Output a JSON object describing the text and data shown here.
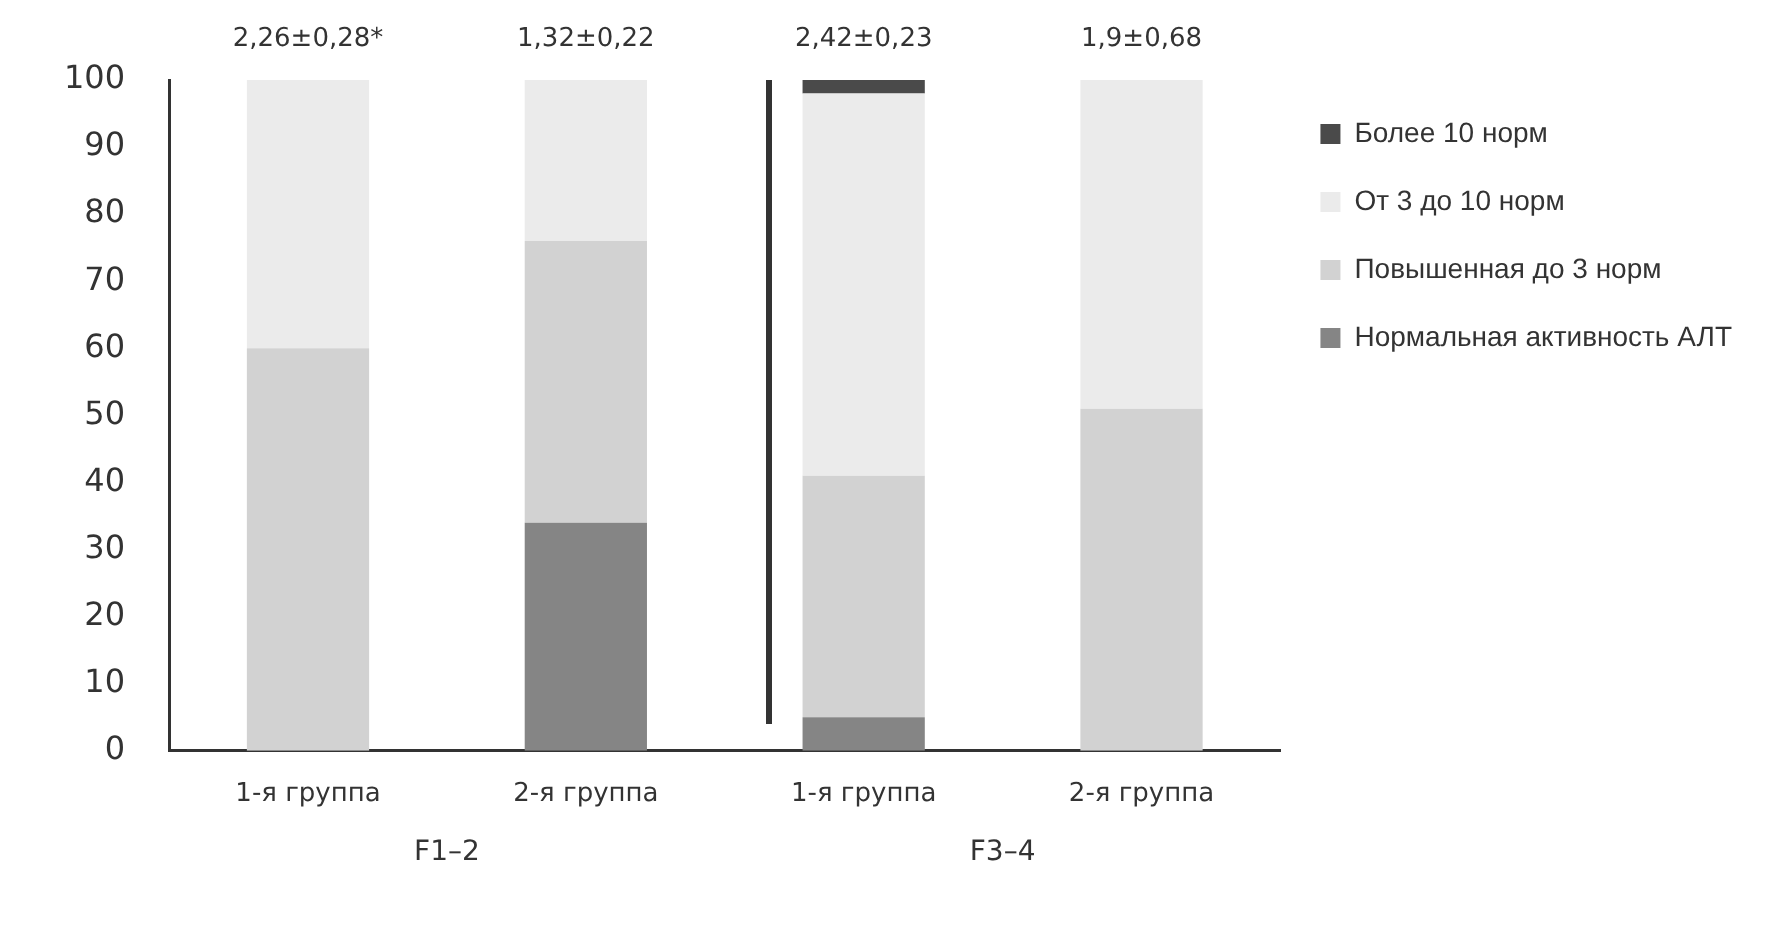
{
  "chart_data": {
    "type": "bar",
    "stacked": true,
    "categories": [
      "1-я группа",
      "2-я группа",
      "1-я группа",
      "2-я группа"
    ],
    "series": [
      {
        "name": "Нормальная активность АЛТ",
        "color": "#858585",
        "values": [
          0,
          34,
          5,
          0
        ]
      },
      {
        "name": "Повышенная до 3 норм",
        "color": "#d2d2d2",
        "values": [
          60,
          42,
          36,
          51
        ]
      },
      {
        "name": "От 3 до 10 норм",
        "color": "#ebebeb",
        "values": [
          40,
          24,
          57,
          49
        ]
      },
      {
        "name": "Более 10 норм",
        "color": "#4a4a4a",
        "values": [
          0,
          0,
          2,
          0
        ]
      }
    ],
    "ylim": [
      0,
      100
    ],
    "yticks": [
      0,
      10,
      20,
      30,
      40,
      50,
      60,
      70,
      80,
      90,
      100
    ],
    "grid": false,
    "legend": "right",
    "annotations": [
      "2,26±0,28*",
      "1,32±0,22",
      "2,42±0,23",
      "1,9±0,68",
      "F1–2",
      "F3–4"
    ]
  }
}
